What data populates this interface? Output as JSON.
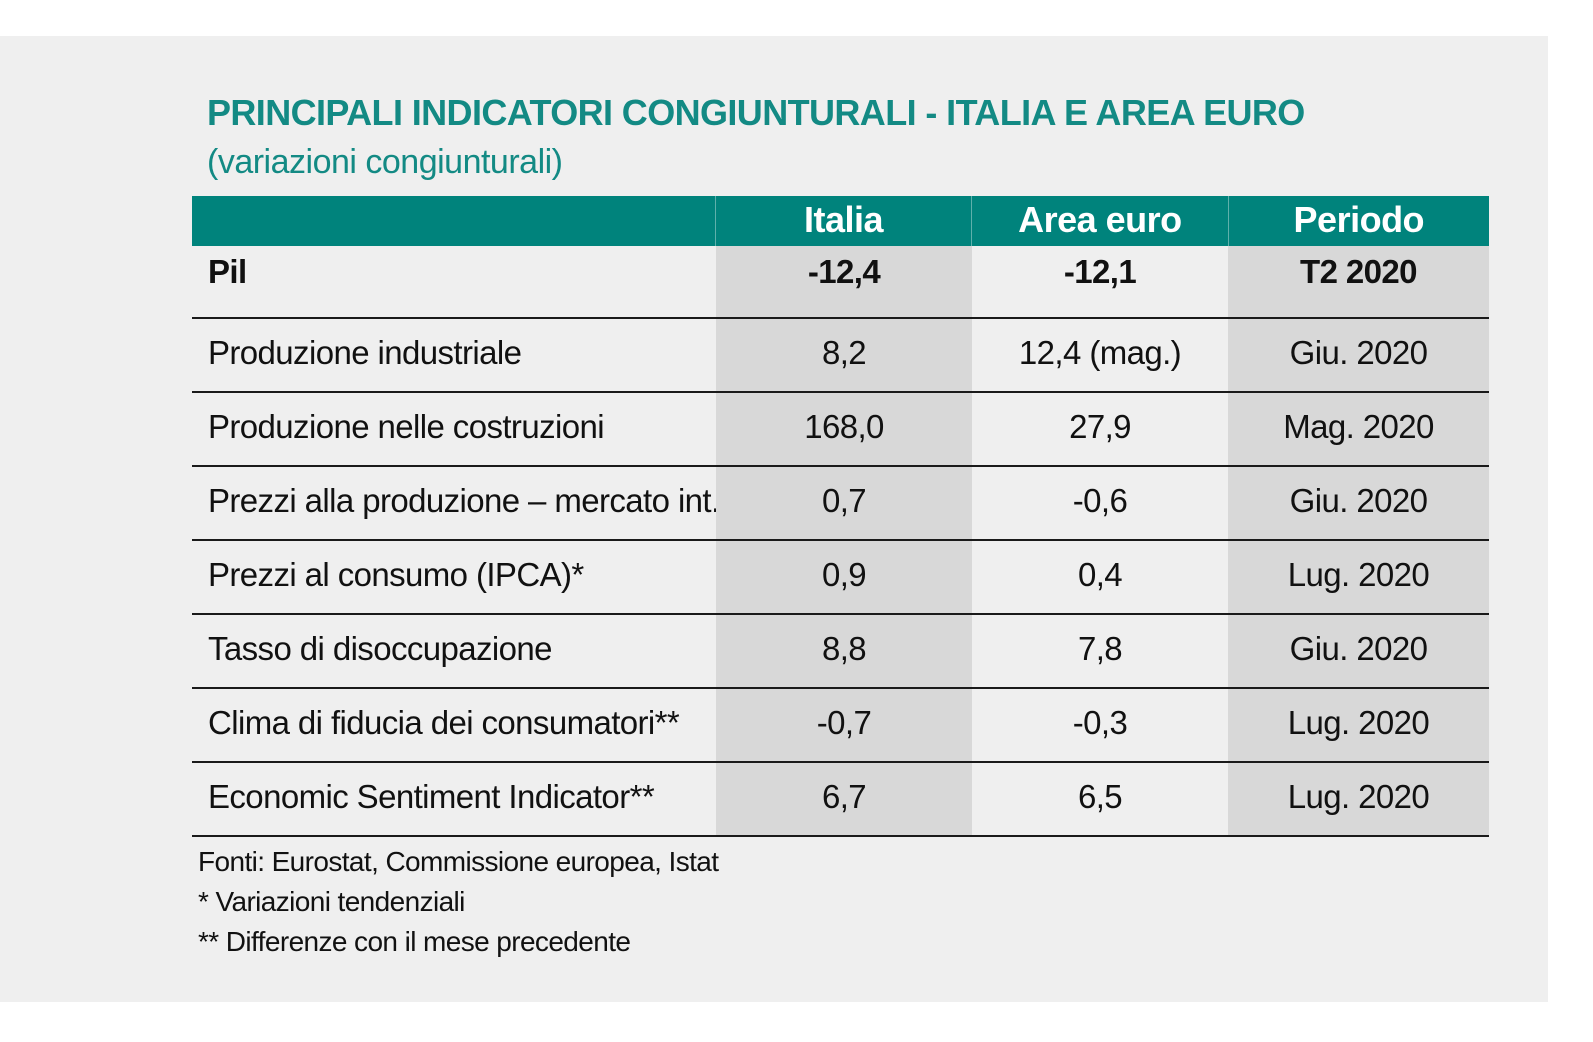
{
  "title": "PRINCIPALI INDICATORI CONGIUNTURALI - ITALIA E AREA EURO",
  "subtitle": "(variazioni congiunturali)",
  "table": {
    "headers": [
      "",
      "Italia",
      "Area euro",
      "Periodo"
    ],
    "rows": [
      {
        "label": "Pil",
        "italia": "-12,4",
        "area_euro": "-12,1",
        "periodo": "T2 2020"
      },
      {
        "label": "Produzione industriale",
        "italia": "8,2",
        "area_euro": "12,4 (mag.)",
        "periodo": "Giu. 2020"
      },
      {
        "label": "Produzione nelle costruzioni",
        "italia": "168,0",
        "area_euro": "27,9",
        "periodo": "Mag. 2020"
      },
      {
        "label": "Prezzi alla produzione – mercato int.",
        "italia": "0,7",
        "area_euro": "-0,6",
        "periodo": "Giu. 2020"
      },
      {
        "label": "Prezzi al consumo (IPCA)*",
        "italia": "0,9",
        "area_euro": "0,4",
        "periodo": "Lug. 2020"
      },
      {
        "label": "Tasso di disoccupazione",
        "italia": "8,8",
        "area_euro": "7,8",
        "periodo": "Giu. 2020"
      },
      {
        "label": "Clima di fiducia dei consumatori**",
        "italia": "-0,7",
        "area_euro": "-0,3",
        "periodo": "Lug. 2020"
      },
      {
        "label": "Economic Sentiment Indicator**",
        "italia": "6,7",
        "area_euro": "6,5",
        "periodo": "Lug. 2020"
      }
    ]
  },
  "notes": [
    "Fonti: Eurostat, Commissione europea, Istat",
    "* Variazioni tendenziali",
    "** Differenze con il mese precedente"
  ],
  "colors": {
    "accent": "#00837c",
    "title": "#138a84",
    "shade": "#d8d8d8",
    "background": "#efefef"
  }
}
